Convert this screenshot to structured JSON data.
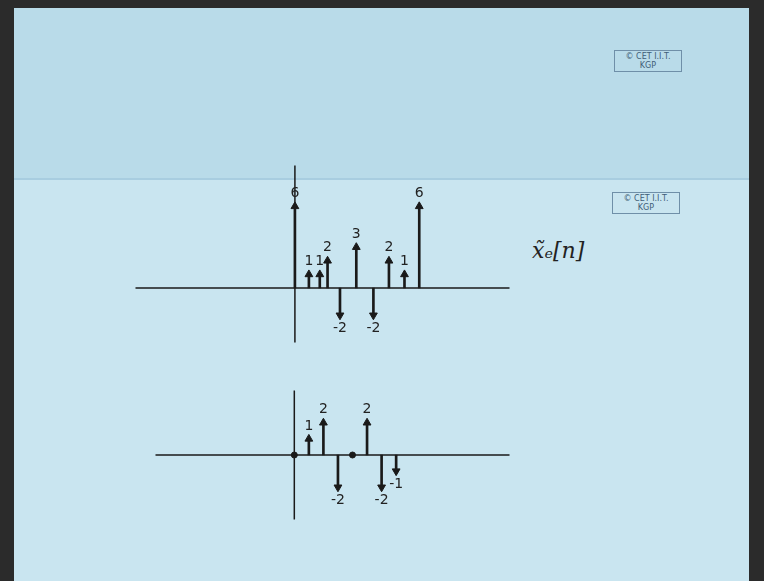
{
  "watermarks": [
    "© CET I.I.T. KGP",
    "© CET I.I.T. KGP"
  ],
  "chart_data": [
    {
      "type": "stem",
      "title": "x̃ₑ[n]",
      "x": [
        0,
        0.9,
        1.6,
        2.1,
        2.9,
        3.95,
        5.05,
        6.05,
        7.05,
        8.0
      ],
      "values": [
        6,
        1,
        1,
        2,
        -2,
        3,
        -2,
        2,
        1,
        6
      ],
      "xlim": [
        -7.85,
        11.4
      ],
      "ylim": [
        -4,
        9
      ],
      "color": "#1a1a1a",
      "marker": "arrow",
      "data_labels": true,
      "tick_labels": false,
      "grid": false
    },
    {
      "type": "stem",
      "x": [
        0,
        1,
        2,
        3,
        4,
        5,
        6,
        7
      ],
      "values": [
        0,
        1,
        2,
        -2,
        0,
        2,
        -2,
        -1
      ],
      "value_labels": [
        null,
        "1",
        "2",
        "-2",
        null,
        "2",
        "-2",
        "-1"
      ],
      "xlim": [
        -6.5,
        11.75
      ],
      "ylim": [
        -4,
        4
      ],
      "color": "#1a1a1a",
      "marker": "arrow",
      "data_labels": true,
      "tick_labels": false,
      "grid": false
    }
  ]
}
